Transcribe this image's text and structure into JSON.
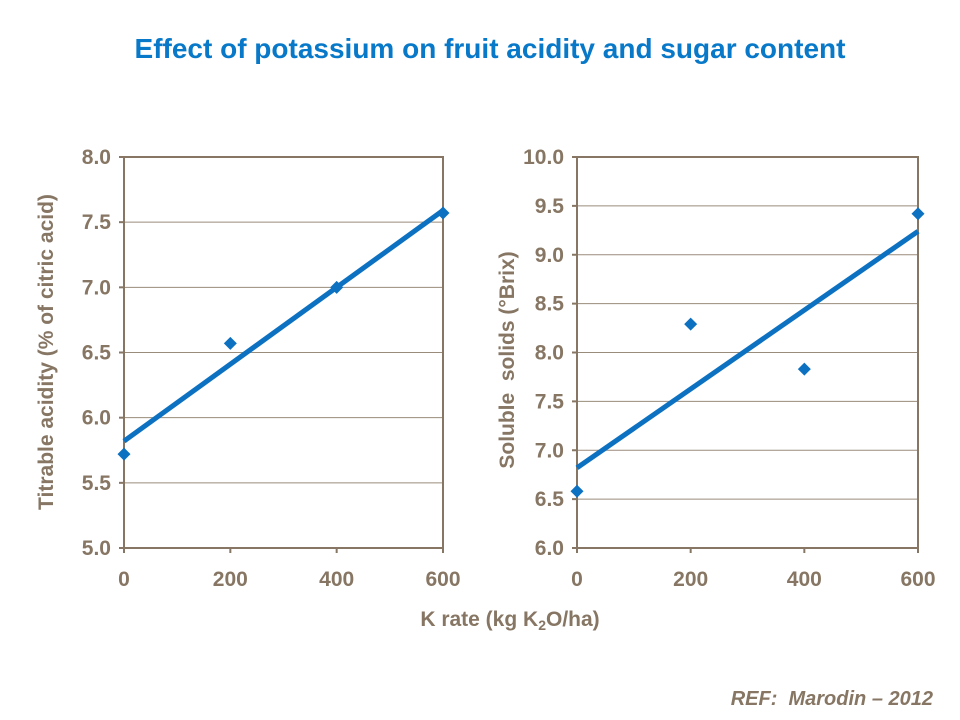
{
  "page": {
    "title": "Effect of potassium on fruit acidity and sugar content",
    "footer_ref": "REF:  Marodin – 2012",
    "colors": {
      "background": "#ffffff",
      "title_blue": "#0878c8",
      "series_blue": "#0d71c2",
      "axis_brown": "#867663",
      "grid_brown": "#9a8c7a"
    }
  },
  "xlabel": {
    "pre": "K rate (kg K",
    "sub": "2",
    "post": "O/ha)"
  },
  "chart_data": [
    {
      "type": "scatter",
      "title": "",
      "ylabel": "Titrable acidity (% of citric acid)",
      "xlabel": "K rate (kg K2O/ha)",
      "xlim": [
        0,
        600
      ],
      "ylim": [
        5.0,
        8.0
      ],
      "xticks": [
        0,
        200,
        400,
        600
      ],
      "xtick_labels": [
        "0",
        "200",
        "400",
        "600"
      ],
      "yticks": [
        5.0,
        5.5,
        6.0,
        6.5,
        7.0,
        7.5,
        8.0
      ],
      "ytick_labels": [
        "5.0",
        "5.5",
        "6.0",
        "6.5",
        "7.0",
        "7.5",
        "8.0"
      ],
      "grid": "horizontal",
      "legend": "none",
      "points": [
        [
          0,
          5.72
        ],
        [
          200,
          6.57
        ],
        [
          400,
          7.0
        ],
        [
          600,
          7.57
        ]
      ],
      "trendline": {
        "x1": 0,
        "y1": 5.82,
        "x2": 600,
        "y2": 7.59
      }
    },
    {
      "type": "scatter",
      "title": "",
      "ylabel": "Soluble  solids (°Brix)",
      "xlabel": "K rate (kg K2O/ha)",
      "xlim": [
        0,
        600
      ],
      "ylim": [
        6.0,
        10.0
      ],
      "xticks": [
        0,
        200,
        400,
        600
      ],
      "xtick_labels": [
        "0",
        "200",
        "400",
        "600"
      ],
      "yticks": [
        6.0,
        6.5,
        7.0,
        7.5,
        8.0,
        8.5,
        9.0,
        9.5,
        10.0
      ],
      "ytick_labels": [
        "6.0",
        "6.5",
        "7.0",
        "7.5",
        "8.0",
        "8.5",
        "9.0",
        "9.5",
        "10.0"
      ],
      "grid": "horizontal",
      "legend": "none",
      "points": [
        [
          0,
          6.58
        ],
        [
          200,
          8.29
        ],
        [
          400,
          7.83
        ],
        [
          600,
          9.42
        ]
      ],
      "trendline": {
        "x1": 0,
        "y1": 6.82,
        "x2": 600,
        "y2": 9.24
      }
    }
  ]
}
